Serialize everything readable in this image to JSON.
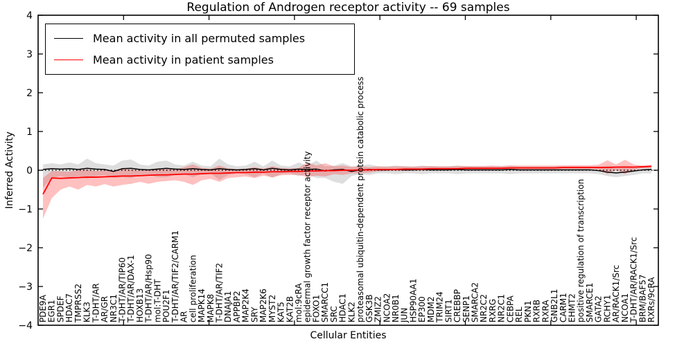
{
  "chart_data": {
    "type": "line",
    "title": "Regulation of Androgen receptor activity -- 69 samples",
    "xlabel": "Cellular Entities",
    "ylabel": "Inferred Activity",
    "ylim": [
      -4,
      4
    ],
    "yticks": [
      -4,
      -3,
      -2,
      -1,
      0,
      1,
      2,
      3,
      4
    ],
    "xticks": [
      10,
      20,
      30,
      40,
      50,
      60,
      70
    ],
    "grid": false,
    "legend_position": "upper left",
    "zero_reference_line": true,
    "legend": [
      {
        "label": "Mean activity in all permuted samples",
        "color": "#000000"
      },
      {
        "label": "Mean activity in patient samples",
        "color": "#ff0000"
      }
    ],
    "categories": [
      "PDE9A",
      "EGR1",
      "SPDEF",
      "HDAC7",
      "TMPRSS2",
      "KLK3",
      "T-DHT/AR",
      "AR/GR",
      "NR3C1",
      "T-DHT/AR/TIP60",
      "T-DHT/AR/DAX-1",
      "HOXB13",
      "T-DHT/AR/Hsp90",
      "mol:T-DHT",
      "POU2F1",
      "T-DHT/AR/TIF2/CARM1",
      "AR",
      "cell proliferation",
      "MAPK14",
      "MAPK8",
      "T-DHT/AR/TIF2",
      "DNAJA1",
      "APPBP2",
      "MAP2K4",
      "SRY",
      "MAP2K6",
      "MYST2",
      "KAT5",
      "KAT2B",
      "mol:9cRA",
      "epidermal growth factor receptor activity",
      "FOXO1",
      "SMARCC1",
      "SRC",
      "HDAC1",
      "KLK2",
      "proteasomal ubiquitin-dependent protein catabolic process",
      "GSK3B",
      "ZMIZ2",
      "NCOA2",
      "NR0B1",
      "JUN",
      "HSP90AA1",
      "EP300",
      "MDM2",
      "TRIM24",
      "SIRT1",
      "CREBBP",
      "SENP1",
      "SMARCA2",
      "NR2C2",
      "RXRG",
      "NR2C1",
      "CEBPA",
      "REL",
      "PKN1",
      "RXRB",
      "RXRA",
      "GNB2L1",
      "CARM1",
      "EHMT2",
      "positive regulation of transcription",
      "SMARCE1",
      "GATA2",
      "RCHY1",
      "AR/RACK1/Src",
      "NCOA1",
      "T-DHT/AR/RACK1/Src",
      "BRM/BAF57",
      "RXRs/9cRA"
    ],
    "series": [
      {
        "id": "permuted",
        "name": "Mean activity in all permuted samples",
        "color": "#000000",
        "band_color": "#999999",
        "band_opacity": 0.32,
        "line_width": 1.5,
        "mean": [
          0.02,
          0.04,
          0.03,
          0.04,
          0.02,
          0.05,
          0.03,
          0.02,
          -0.03,
          0.04,
          0.05,
          0.02,
          0.01,
          0.03,
          0.05,
          0.03,
          0.02,
          0.04,
          0.02,
          0.01,
          0.04,
          0.02,
          0.01,
          0.02,
          0.04,
          0.01,
          0.05,
          0.02,
          0.01,
          0.03,
          0.02,
          0.03,
          -0.02,
          0.01,
          0.02,
          -0.03,
          0.01,
          0.02,
          0.01,
          0.01,
          0.02,
          0.01,
          0.01,
          0.02,
          0.01,
          0.01,
          0.01,
          0.02,
          0.01,
          0.01,
          0.01,
          0.01,
          0.01,
          0.02,
          0.01,
          0.01,
          0.01,
          0.01,
          0.01,
          0.01,
          0.01,
          0.01,
          0.01,
          -0.01,
          -0.05,
          -0.07,
          -0.05,
          -0.02,
          0.01,
          0.02
        ],
        "upper": [
          0.15,
          0.18,
          0.15,
          0.2,
          0.15,
          0.3,
          0.18,
          0.15,
          0.12,
          0.25,
          0.28,
          0.15,
          0.12,
          0.22,
          0.25,
          0.15,
          0.12,
          0.22,
          0.12,
          0.1,
          0.3,
          0.15,
          0.1,
          0.12,
          0.22,
          0.1,
          0.25,
          0.12,
          0.1,
          0.2,
          0.12,
          0.25,
          0.1,
          0.12,
          0.18,
          0.1,
          0.12,
          0.15,
          0.1,
          0.1,
          0.12,
          0.1,
          0.1,
          0.12,
          0.1,
          0.1,
          0.1,
          0.12,
          0.1,
          0.1,
          0.1,
          0.1,
          0.1,
          0.12,
          0.1,
          0.1,
          0.1,
          0.1,
          0.1,
          0.1,
          0.1,
          0.1,
          0.1,
          0.1,
          0.12,
          0.1,
          0.12,
          0.1,
          0.1,
          0.1
        ],
        "lower": [
          -0.45,
          -0.2,
          -0.15,
          -0.2,
          -0.15,
          -0.22,
          -0.15,
          -0.12,
          -0.2,
          -0.18,
          -0.2,
          -0.12,
          -0.12,
          -0.18,
          -0.18,
          -0.12,
          -0.1,
          -0.18,
          -0.1,
          -0.08,
          -0.25,
          -0.12,
          -0.08,
          -0.1,
          -0.18,
          -0.08,
          -0.2,
          -0.1,
          -0.08,
          -0.15,
          -0.1,
          -0.2,
          -0.2,
          -0.3,
          -0.35,
          -0.15,
          -0.1,
          -0.12,
          -0.08,
          -0.08,
          -0.1,
          -0.08,
          -0.08,
          -0.1,
          -0.08,
          -0.08,
          -0.08,
          -0.1,
          -0.08,
          -0.08,
          -0.08,
          -0.08,
          -0.08,
          -0.1,
          -0.08,
          -0.08,
          -0.08,
          -0.08,
          -0.08,
          -0.08,
          -0.08,
          -0.08,
          -0.08,
          -0.1,
          -0.15,
          -0.18,
          -0.15,
          -0.12,
          -0.08,
          -0.08
        ]
      },
      {
        "id": "patient",
        "name": "Mean activity in patient samples",
        "color": "#ff0000",
        "band_color": "#ff3030",
        "band_opacity": 0.3,
        "line_width": 1.8,
        "mean": [
          -0.62,
          -0.2,
          -0.21,
          -0.2,
          -0.19,
          -0.18,
          -0.18,
          -0.17,
          -0.16,
          -0.15,
          -0.15,
          -0.14,
          -0.13,
          -0.12,
          -0.12,
          -0.11,
          -0.1,
          -0.1,
          -0.09,
          -0.08,
          -0.08,
          -0.07,
          -0.06,
          -0.06,
          -0.05,
          -0.05,
          -0.04,
          -0.04,
          -0.03,
          -0.03,
          -0.02,
          -0.02,
          -0.01,
          -0.01,
          0.0,
          0.0,
          0.01,
          0.01,
          0.02,
          0.02,
          0.02,
          0.03,
          0.03,
          0.03,
          0.04,
          0.04,
          0.04,
          0.04,
          0.05,
          0.05,
          0.05,
          0.05,
          0.05,
          0.06,
          0.06,
          0.06,
          0.06,
          0.06,
          0.06,
          0.07,
          0.07,
          0.07,
          0.07,
          0.07,
          0.07,
          0.08,
          0.08,
          0.08,
          0.09,
          0.1
        ],
        "upper": [
          -0.2,
          -0.02,
          -0.03,
          -0.04,
          0.0,
          0.02,
          -0.02,
          0.0,
          -0.01,
          0.04,
          0.02,
          0.0,
          0.02,
          0.05,
          0.03,
          0.02,
          0.08,
          0.15,
          0.06,
          0.04,
          0.12,
          0.05,
          0.03,
          0.04,
          0.08,
          0.04,
          0.1,
          0.06,
          0.05,
          0.06,
          0.2,
          0.12,
          0.18,
          0.1,
          0.12,
          0.08,
          0.1,
          0.08,
          0.1,
          0.09,
          0.1,
          0.1,
          0.09,
          0.1,
          0.11,
          0.1,
          0.1,
          0.11,
          0.11,
          0.11,
          0.11,
          0.12,
          0.11,
          0.12,
          0.12,
          0.12,
          0.12,
          0.12,
          0.12,
          0.13,
          0.13,
          0.13,
          0.13,
          0.14,
          0.26,
          0.15,
          0.27,
          0.15,
          0.12,
          0.14
        ],
        "lower": [
          -1.25,
          -0.72,
          -0.5,
          -0.42,
          -0.5,
          -0.38,
          -0.42,
          -0.36,
          -0.42,
          -0.38,
          -0.35,
          -0.3,
          -0.35,
          -0.3,
          -0.28,
          -0.26,
          -0.3,
          -0.38,
          -0.26,
          -0.22,
          -0.3,
          -0.2,
          -0.18,
          -0.16,
          -0.2,
          -0.14,
          -0.18,
          -0.13,
          -0.12,
          -0.12,
          -0.18,
          -0.14,
          -0.16,
          -0.1,
          -0.12,
          -0.08,
          -0.08,
          -0.06,
          -0.03,
          -0.02,
          -0.02,
          -0.02,
          -0.01,
          -0.01,
          -0.01,
          0.0,
          0.0,
          0.0,
          0.0,
          0.01,
          0.01,
          0.01,
          0.01,
          0.02,
          0.02,
          0.02,
          0.02,
          0.02,
          0.02,
          0.03,
          0.03,
          0.03,
          0.03,
          0.02,
          -0.1,
          0.01,
          -0.1,
          0.01,
          0.05,
          0.06
        ]
      }
    ]
  }
}
